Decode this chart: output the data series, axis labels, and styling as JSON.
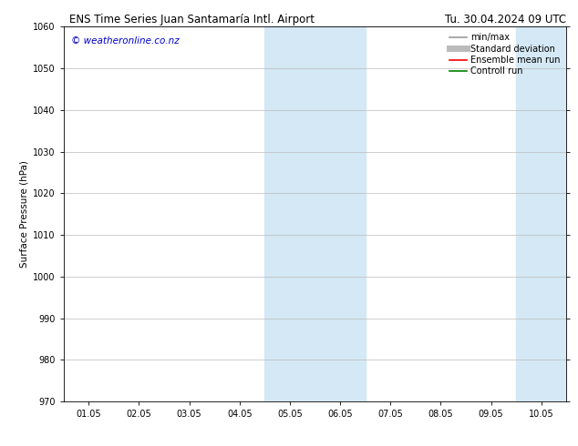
{
  "title_left": "ENS Time Series Juan Santamaría Intl. Airport",
  "title_right": "Tu. 30.04.2024 09 UTC",
  "ylabel": "Surface Pressure (hPa)",
  "ylim": [
    970,
    1060
  ],
  "yticks": [
    970,
    980,
    990,
    1000,
    1010,
    1020,
    1030,
    1040,
    1050,
    1060
  ],
  "xlabels": [
    "01.05",
    "02.05",
    "03.05",
    "04.05",
    "05.05",
    "06.05",
    "07.05",
    "08.05",
    "09.05",
    "10.05"
  ],
  "watermark": "© weatheronline.co.nz",
  "watermark_color": "#0000cc",
  "bg_color": "#ffffff",
  "plot_bg_color": "#ffffff",
  "shaded_color": "#d4e8f5",
  "shaded_regions": [
    {
      "xstart": 3.5,
      "xend": 5.5
    },
    {
      "xstart": 8.5,
      "xend": 9.5
    }
  ],
  "legend_items": [
    {
      "label": "min/max",
      "color": "#999999",
      "lw": 1.2,
      "ls": "-"
    },
    {
      "label": "Standard deviation",
      "color": "#bbbbbb",
      "lw": 5,
      "ls": "-"
    },
    {
      "label": "Ensemble mean run",
      "color": "#ff0000",
      "lw": 1.2,
      "ls": "-"
    },
    {
      "label": "Controll run",
      "color": "#008000",
      "lw": 1.2,
      "ls": "-"
    }
  ],
  "grid_color": "#bbbbbb",
  "tick_color": "#000000",
  "font_color": "#000000",
  "title_fontsize": 8.5,
  "label_fontsize": 7.5,
  "tick_fontsize": 7.0,
  "watermark_fontsize": 7.5,
  "legend_fontsize": 7.0
}
